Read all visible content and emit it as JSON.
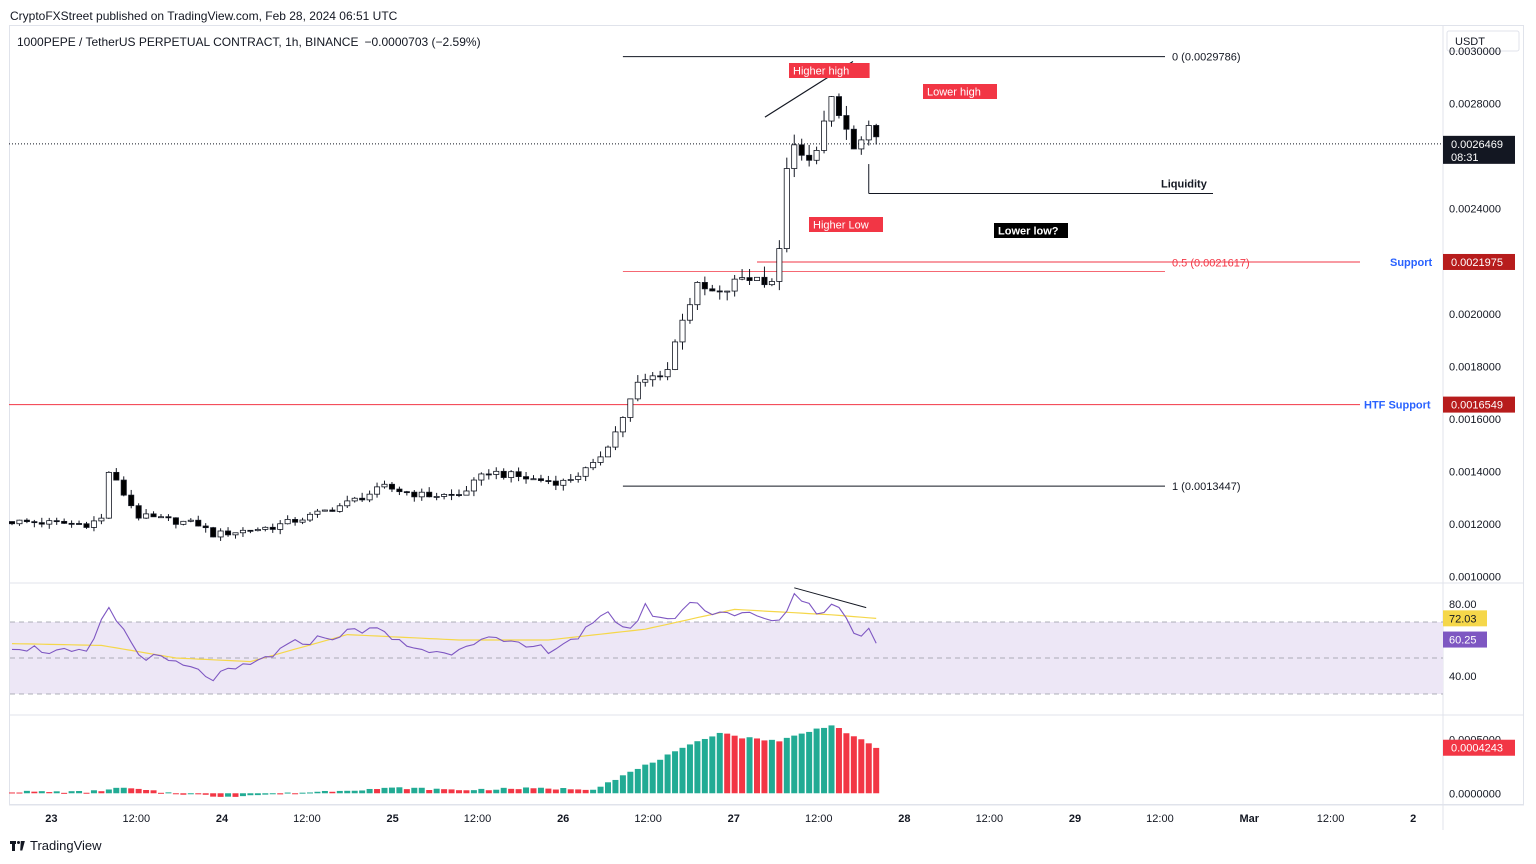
{
  "header": {
    "published": "CryptoFXStreet published on TradingView.com, Feb 28, 2024 06:51 UTC",
    "symbol": "1000PEPE / TetherUS PERPETUAL CONTRACT, 1h, BINANCE",
    "change": "−0.0000703 (−2.59%)",
    "currency": "USDT"
  },
  "footer": {
    "brand": "TradingView"
  },
  "colors": {
    "up_candle": "#ffffff",
    "down_candle": "#000000",
    "outline": "#131722",
    "red_line": "#f23645",
    "blue_label": "#2962ff",
    "rsi_line": "#7e57c2",
    "rsi_ma": "#f5d74a",
    "rsi_band": "#ede7f6",
    "hist_up": "#22ab94",
    "hist_down": "#f23645"
  },
  "chart_data": [
    {
      "type": "candlestick",
      "timeframe": "1h",
      "ylim": [
        0.00098,
        0.00308
      ],
      "y_ticks": [
        "0.0030000",
        "0.0028000",
        "0.0026469",
        "0.0024000",
        "0.0021975",
        "0.0020000",
        "0.0018000",
        "0.0016549",
        "0.0016000",
        "0.0014000",
        "0.0012000",
        "0.0010000"
      ],
      "x_ticks": [
        "23",
        "12:00",
        "24",
        "12:00",
        "25",
        "12:00",
        "26",
        "12:00",
        "27",
        "12:00",
        "28",
        "12:00",
        "29",
        "12:00",
        "Mar",
        "12:00",
        "2"
      ],
      "key_points": [
        {
          "i": 0,
          "price": 0.00121
        },
        {
          "i": 10,
          "price": 0.0012
        },
        {
          "i": 12,
          "price": 0.00122
        },
        {
          "i": 13,
          "price": 0.0014
        },
        {
          "i": 17,
          "price": 0.00123
        },
        {
          "i": 25,
          "price": 0.0012
        },
        {
          "i": 27,
          "price": 0.00116
        },
        {
          "i": 35,
          "price": 0.00119
        },
        {
          "i": 40,
          "price": 0.00123
        },
        {
          "i": 45,
          "price": 0.00128
        },
        {
          "i": 50,
          "price": 0.00134
        },
        {
          "i": 55,
          "price": 0.00131
        },
        {
          "i": 60,
          "price": 0.00131
        },
        {
          "i": 64,
          "price": 0.0014
        },
        {
          "i": 70,
          "price": 0.00137
        },
        {
          "i": 74,
          "price": 0.00136
        },
        {
          "i": 78,
          "price": 0.00142
        },
        {
          "i": 81,
          "price": 0.00155
        },
        {
          "i": 84,
          "price": 0.00173
        },
        {
          "i": 88,
          "price": 0.00179
        },
        {
          "i": 90,
          "price": 0.00199
        },
        {
          "i": 92,
          "price": 0.0021
        },
        {
          "i": 95,
          "price": 0.00207
        },
        {
          "i": 98,
          "price": 0.00214
        },
        {
          "i": 102,
          "price": 0.00213
        },
        {
          "i": 103,
          "price": 0.00223
        },
        {
          "i": 104,
          "price": 0.00257
        },
        {
          "i": 105,
          "price": 0.00262
        },
        {
          "i": 107,
          "price": 0.00257
        },
        {
          "i": 110,
          "price": 0.0028
        },
        {
          "i": 112,
          "price": 0.0027
        },
        {
          "i": 113,
          "price": 0.00262
        },
        {
          "i": 115,
          "price": 0.00269
        },
        {
          "i": 116,
          "price": 0.00265
        }
      ],
      "last_price": "0.0026469",
      "countdown": "08:31",
      "levels": [
        {
          "label": "0 (0.0029786)",
          "price": 0.0029786,
          "kind": "fib"
        },
        {
          "label": "0.5 (0.0021617)",
          "price": 0.0021617,
          "kind": "fib-mid"
        },
        {
          "label": "1 (0.0013447)",
          "price": 0.0013447,
          "kind": "fib"
        },
        {
          "label": "Support",
          "price": 0.0021975,
          "tag": "0.0021975",
          "kind": "support"
        },
        {
          "label": "HTF Support",
          "price": 0.0016549,
          "tag": "0.0016549",
          "kind": "support"
        },
        {
          "label": "Liquidity",
          "price": 0.002458,
          "kind": "liquidity"
        }
      ],
      "annotations": [
        {
          "text": "Higher high",
          "style": "red"
        },
        {
          "text": "Lower high",
          "style": "red"
        },
        {
          "text": "Higher Low",
          "style": "red"
        },
        {
          "text": "Lower low?",
          "style": "black"
        }
      ]
    },
    {
      "type": "line",
      "name": "RSI",
      "ylim": [
        20,
        90
      ],
      "y_ticks": [
        "80.00",
        "40.00"
      ],
      "bands": [
        70,
        50,
        30
      ],
      "rsi_last": "60.25",
      "ma_last": "72.03",
      "rsi_key_points": [
        {
          "i": 0,
          "v": 57
        },
        {
          "i": 5,
          "v": 54
        },
        {
          "i": 10,
          "v": 52
        },
        {
          "i": 13,
          "v": 78
        },
        {
          "i": 17,
          "v": 52
        },
        {
          "i": 22,
          "v": 47
        },
        {
          "i": 27,
          "v": 39
        },
        {
          "i": 32,
          "v": 46
        },
        {
          "i": 38,
          "v": 58
        },
        {
          "i": 44,
          "v": 63
        },
        {
          "i": 48,
          "v": 67
        },
        {
          "i": 53,
          "v": 57
        },
        {
          "i": 58,
          "v": 52
        },
        {
          "i": 63,
          "v": 62
        },
        {
          "i": 67,
          "v": 57
        },
        {
          "i": 72,
          "v": 55
        },
        {
          "i": 76,
          "v": 62
        },
        {
          "i": 80,
          "v": 74
        },
        {
          "i": 83,
          "v": 66
        },
        {
          "i": 85,
          "v": 78
        },
        {
          "i": 88,
          "v": 70
        },
        {
          "i": 91,
          "v": 81
        },
        {
          "i": 94,
          "v": 76
        },
        {
          "i": 97,
          "v": 75
        },
        {
          "i": 101,
          "v": 72
        },
        {
          "i": 103,
          "v": 69
        },
        {
          "i": 105,
          "v": 86
        },
        {
          "i": 108,
          "v": 76
        },
        {
          "i": 111,
          "v": 80
        },
        {
          "i": 113,
          "v": 63
        },
        {
          "i": 115,
          "v": 65
        },
        {
          "i": 116,
          "v": 60
        }
      ],
      "ma_key_points": [
        {
          "i": 0,
          "v": 58
        },
        {
          "i": 12,
          "v": 57
        },
        {
          "i": 22,
          "v": 50
        },
        {
          "i": 32,
          "v": 48
        },
        {
          "i": 45,
          "v": 63
        },
        {
          "i": 60,
          "v": 60
        },
        {
          "i": 72,
          "v": 60
        },
        {
          "i": 85,
          "v": 66
        },
        {
          "i": 97,
          "v": 77
        },
        {
          "i": 110,
          "v": 74
        },
        {
          "i": 116,
          "v": 72
        }
      ]
    },
    {
      "type": "bar",
      "name": "histogram",
      "ylim": [
        -0.0001,
        0.00072
      ],
      "y_ticks": [
        "0.0005000",
        "0.0000000"
      ],
      "last_value": "0.0004243",
      "key_points": [
        {
          "i": 0,
          "v": 1.5e-05
        },
        {
          "i": 10,
          "v": 1.2e-05
        },
        {
          "i": 15,
          "v": 5e-05
        },
        {
          "i": 20,
          "v": 1e-05
        },
        {
          "i": 28,
          "v": -3e-05
        },
        {
          "i": 35,
          "v": -1e-05
        },
        {
          "i": 45,
          "v": 3e-05
        },
        {
          "i": 52,
          "v": 5e-05
        },
        {
          "i": 60,
          "v": 3e-05
        },
        {
          "i": 68,
          "v": 4.5e-05
        },
        {
          "i": 78,
          "v": 4e-05
        },
        {
          "i": 95,
          "v": 0.00057
        },
        {
          "i": 98,
          "v": 0.00052
        },
        {
          "i": 103,
          "v": 0.00049
        },
        {
          "i": 110,
          "v": 0.00064
        },
        {
          "i": 116,
          "v": 0.00042
        }
      ]
    }
  ]
}
